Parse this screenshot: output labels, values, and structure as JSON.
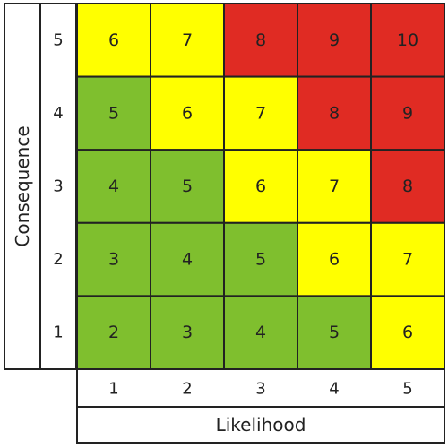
{
  "chart_data": {
    "type": "heatmap",
    "title": "",
    "xlabel": "Likelihood",
    "ylabel": "Consequence",
    "x_categories": [
      "1",
      "2",
      "3",
      "4",
      "5"
    ],
    "y_categories": [
      "5",
      "4",
      "3",
      "2",
      "1"
    ],
    "values": [
      [
        6,
        7,
        8,
        9,
        10
      ],
      [
        5,
        6,
        7,
        8,
        9
      ],
      [
        4,
        5,
        6,
        7,
        8
      ],
      [
        3,
        4,
        5,
        6,
        7
      ],
      [
        2,
        3,
        4,
        5,
        6
      ]
    ],
    "color_bands": [
      {
        "min": 2,
        "max": 5,
        "color": "#7fbf2e"
      },
      {
        "min": 6,
        "max": 7,
        "color": "#ffff00"
      },
      {
        "min": 8,
        "max": 10,
        "color": "#e02b23"
      }
    ],
    "grid": true,
    "legend": "none"
  }
}
